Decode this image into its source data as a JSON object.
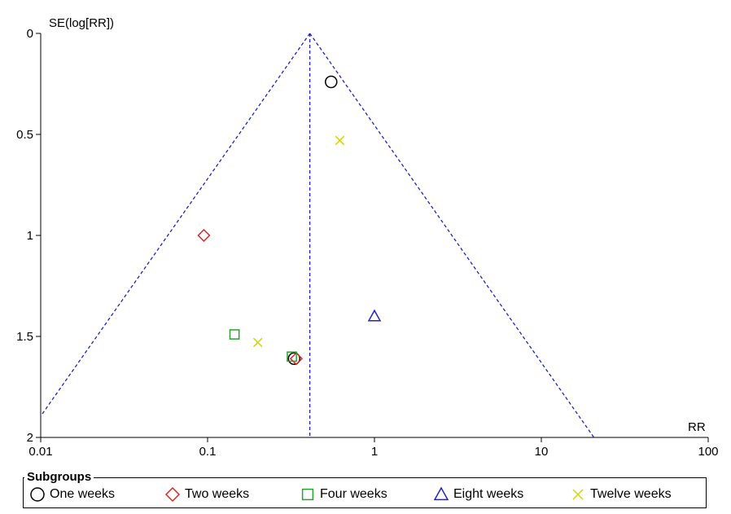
{
  "chart_data": {
    "type": "scatter",
    "subtype": "funnel-plot",
    "xlabel": "RR",
    "ylabel": "SE(log[RR])",
    "x_scale": "log",
    "xlim": [
      0.01,
      100
    ],
    "ylim": [
      0,
      2
    ],
    "y_reversed": true,
    "xticks": [
      "0.01",
      "0.1",
      "1",
      "10",
      "100"
    ],
    "yticks": [
      "0",
      "0.5",
      "1",
      "1.5",
      "2"
    ],
    "pooled_estimate_rr": 0.41,
    "funnel_color": "#1f1fc8",
    "legend_title": "Subgroups",
    "legend_position": "bottom",
    "series": [
      {
        "name": "One weeks",
        "marker": "circle",
        "color": "#000000",
        "points": [
          {
            "x": 0.55,
            "y": 0.24
          },
          {
            "x": 0.33,
            "y": 1.61
          }
        ]
      },
      {
        "name": "Two weeks",
        "marker": "diamond",
        "color": "#d62728",
        "points": [
          {
            "x": 0.095,
            "y": 1.0
          },
          {
            "x": 0.34,
            "y": 1.61
          }
        ]
      },
      {
        "name": "Four weeks",
        "marker": "square",
        "color": "#2ca02c",
        "points": [
          {
            "x": 0.145,
            "y": 1.49
          },
          {
            "x": 0.32,
            "y": 1.6
          }
        ]
      },
      {
        "name": "Eight weeks",
        "marker": "triangle",
        "color": "#2222cc",
        "points": [
          {
            "x": 1.0,
            "y": 1.4
          }
        ]
      },
      {
        "name": "Twelve weeks",
        "marker": "x",
        "color": "#d4d400",
        "points": [
          {
            "x": 0.62,
            "y": 0.53
          },
          {
            "x": 0.2,
            "y": 1.53
          }
        ]
      }
    ]
  }
}
